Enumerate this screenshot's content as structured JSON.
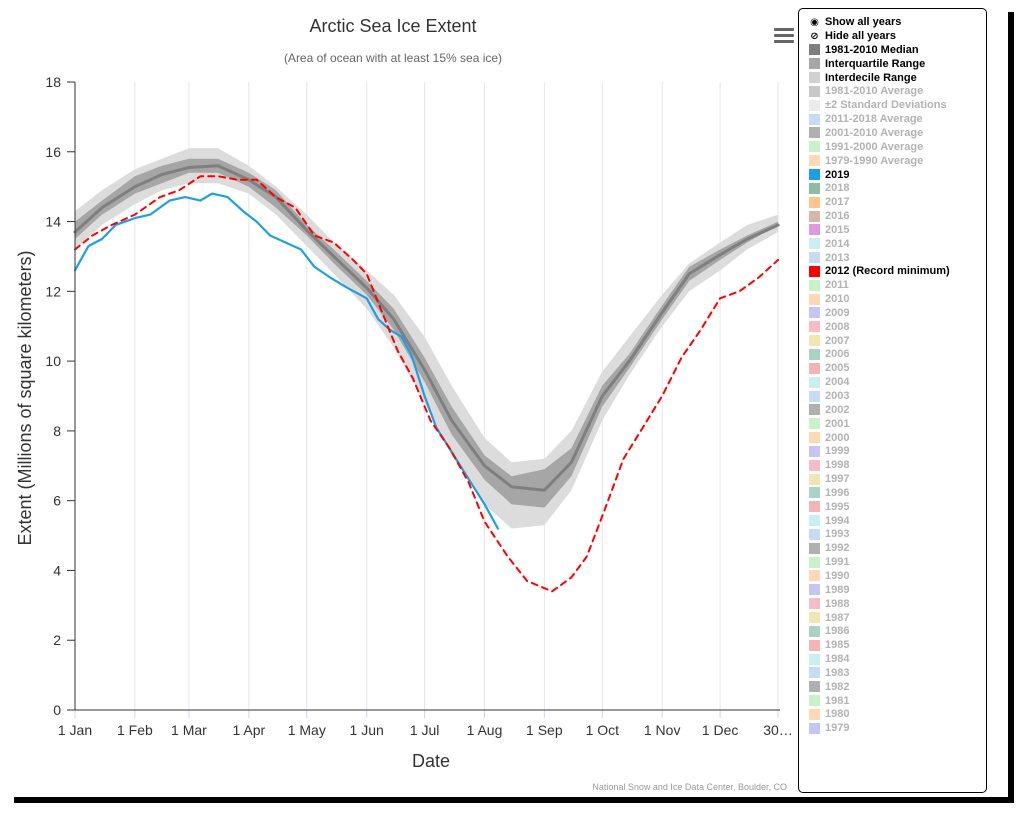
{
  "chart_data": {
    "type": "line",
    "title": "Arctic Sea Ice Extent",
    "subtitle": "(Area of ocean with at least 15% sea ice)",
    "xlabel": "Date",
    "ylabel": "Extent (Millions of square kilometers)",
    "ylim": [
      0,
      18
    ],
    "yticks": [
      0,
      2,
      4,
      6,
      8,
      10,
      12,
      14,
      16,
      18
    ],
    "xticks": [
      "1 Jan",
      "1 Feb",
      "1 Mar",
      "1 Apr",
      "1 May",
      "1 Jun",
      "1 Jul",
      "1 Aug",
      "1 Sep",
      "1 Oct",
      "1 Nov",
      "1 Dec",
      "30…"
    ],
    "grid": "vertical",
    "x_unit": "day of year",
    "bands": [
      {
        "name": "Interdecile Range",
        "color": "#dcdcdc",
        "x": [
          1,
          15,
          32,
          46,
          60,
          75,
          91,
          105,
          121,
          135,
          152,
          166,
          182,
          196,
          213,
          227,
          244,
          258,
          274,
          288,
          305,
          319,
          335,
          349,
          365
        ],
        "low": [
          13.2,
          13.9,
          14.5,
          14.9,
          15.1,
          15.1,
          14.8,
          14.2,
          13.3,
          12.5,
          11.5,
          10.4,
          8.8,
          7.3,
          5.9,
          5.2,
          5.3,
          6.3,
          8.3,
          9.6,
          11.0,
          12.0,
          12.6,
          13.2,
          13.7
        ],
        "high": [
          14.3,
          14.9,
          15.5,
          15.8,
          16.1,
          16.1,
          15.6,
          15.0,
          14.2,
          13.4,
          12.6,
          11.9,
          10.7,
          9.3,
          7.8,
          7.1,
          7.2,
          8.0,
          9.7,
          10.7,
          11.9,
          12.8,
          13.4,
          13.9,
          14.2
        ]
      },
      {
        "name": "Interquartile Range",
        "color": "#a6a6a6",
        "x": [
          1,
          15,
          32,
          46,
          60,
          75,
          91,
          105,
          121,
          135,
          152,
          166,
          182,
          196,
          213,
          227,
          244,
          258,
          274,
          288,
          305,
          319,
          335,
          349,
          365
        ],
        "low": [
          13.5,
          14.2,
          14.8,
          15.1,
          15.4,
          15.4,
          15.0,
          14.4,
          13.6,
          12.8,
          11.9,
          10.9,
          9.4,
          7.9,
          6.6,
          5.9,
          5.8,
          6.7,
          8.7,
          9.8,
          11.2,
          12.3,
          12.9,
          13.4,
          13.9
        ],
        "high": [
          14.0,
          14.6,
          15.3,
          15.6,
          15.8,
          15.8,
          15.4,
          14.9,
          13.9,
          13.2,
          12.3,
          11.5,
          10.1,
          8.7,
          7.3,
          6.7,
          6.9,
          7.5,
          9.3,
          10.2,
          11.6,
          12.7,
          13.2,
          13.6,
          14.0
        ]
      }
    ],
    "series": [
      {
        "name": "1981-2010 Median",
        "color": "#7f7f7f",
        "style": "solid",
        "x": [
          1,
          15,
          32,
          46,
          60,
          75,
          91,
          105,
          121,
          135,
          152,
          166,
          182,
          196,
          213,
          227,
          244,
          258,
          274,
          288,
          305,
          319,
          335,
          349,
          365
        ],
        "y": [
          13.7,
          14.4,
          15.0,
          15.35,
          15.55,
          15.6,
          15.2,
          14.7,
          13.75,
          13.0,
          12.1,
          11.2,
          9.75,
          8.3,
          7.0,
          6.4,
          6.3,
          7.1,
          9.0,
          10.0,
          11.4,
          12.5,
          13.05,
          13.5,
          13.9
        ]
      },
      {
        "name": "2019",
        "color": "#1e9fe5",
        "style": "solid",
        "x": [
          1,
          8,
          15,
          22,
          32,
          40,
          50,
          58,
          66,
          72,
          80,
          88,
          95,
          102,
          110,
          118,
          125,
          133,
          142,
          152,
          158,
          164,
          170,
          175,
          182,
          188,
          196,
          205,
          213,
          220
        ],
        "y": [
          12.6,
          13.3,
          13.5,
          13.9,
          14.1,
          14.2,
          14.6,
          14.7,
          14.6,
          14.8,
          14.7,
          14.3,
          14.0,
          13.6,
          13.4,
          13.2,
          12.7,
          12.4,
          12.1,
          11.8,
          11.2,
          10.9,
          10.7,
          10.2,
          9.0,
          8.1,
          7.4,
          6.6,
          5.9,
          5.2
        ]
      },
      {
        "name": "2012 (Record minimum)",
        "color": "#ff0000",
        "style": "dashed",
        "x": [
          1,
          10,
          20,
          32,
          45,
          55,
          66,
          75,
          85,
          95,
          105,
          115,
          125,
          135,
          145,
          152,
          160,
          168,
          176,
          185,
          195,
          205,
          213,
          225,
          235,
          248,
          258,
          266,
          275,
          285,
          295,
          305,
          315,
          325,
          335,
          345,
          355,
          365
        ],
        "y": [
          13.2,
          13.6,
          13.9,
          14.2,
          14.7,
          14.9,
          15.3,
          15.3,
          15.2,
          15.2,
          14.7,
          14.4,
          13.6,
          13.4,
          12.9,
          12.5,
          11.4,
          10.3,
          9.5,
          8.3,
          7.5,
          6.5,
          5.4,
          4.4,
          3.7,
          3.4,
          3.8,
          4.4,
          5.7,
          7.2,
          8.1,
          9.0,
          10.1,
          10.9,
          11.8,
          12.0,
          12.4,
          12.9
        ]
      }
    ],
    "legend_position": "right",
    "credit": "National Snow and Ice Data Center, Boulder, CO"
  },
  "legend": {
    "show_all": "Show all years",
    "hide_all": "Hide all years",
    "items": [
      {
        "label": "1981-2010 Median",
        "color": "#7f7f7f",
        "active": true
      },
      {
        "label": "Interquartile Range",
        "color": "#a6a6a6",
        "active": true
      },
      {
        "label": "Interdecile Range",
        "color": "#d0d0d0",
        "active": true
      },
      {
        "label": "1981-2010 Average",
        "color": "#c8c8c8",
        "active": false
      },
      {
        "label": "±2 Standard Deviations",
        "color": "#ececec",
        "active": false
      },
      {
        "label": "2011-2018 Average",
        "color": "#c6dcf4",
        "active": false
      },
      {
        "label": "2001-2010 Average",
        "color": "#b0b0b0",
        "active": false
      },
      {
        "label": "1991-2000 Average",
        "color": "#c9f2c9",
        "active": false
      },
      {
        "label": "1979-1990 Average",
        "color": "#fdd9b5",
        "active": false
      },
      {
        "label": "2019",
        "color": "#1e9fe5",
        "active": true
      },
      {
        "label": "2018",
        "color": "#8fbc9f",
        "active": false
      },
      {
        "label": "2017",
        "color": "#fdc58a",
        "active": false
      },
      {
        "label": "2016",
        "color": "#d6b8a8",
        "active": false
      },
      {
        "label": "2015",
        "color": "#dd99dd",
        "active": false
      },
      {
        "label": "2014",
        "color": "#c8f0f0",
        "active": false
      },
      {
        "label": "2013",
        "color": "#c6dcf4",
        "active": false
      },
      {
        "label": "2012 (Record minimum)",
        "color": "#ff0000",
        "active": true
      },
      {
        "label": "2011",
        "color": "#c9f2c9",
        "active": false
      },
      {
        "label": "2010",
        "color": "#fdd9b5",
        "active": false
      },
      {
        "label": "2009",
        "color": "#c6c6f4",
        "active": false
      },
      {
        "label": "2008",
        "color": "#f7bcc8",
        "active": false
      },
      {
        "label": "2007",
        "color": "#f0e6b0",
        "active": false
      },
      {
        "label": "2006",
        "color": "#a8d4c8",
        "active": false
      },
      {
        "label": "2005",
        "color": "#f4b4b4",
        "active": false
      },
      {
        "label": "2004",
        "color": "#c8f0f0",
        "active": false
      },
      {
        "label": "2003",
        "color": "#c6dcf4",
        "active": false
      },
      {
        "label": "2002",
        "color": "#b0b0b0",
        "active": false
      },
      {
        "label": "2001",
        "color": "#c9f2c9",
        "active": false
      },
      {
        "label": "2000",
        "color": "#fdd9b5",
        "active": false
      },
      {
        "label": "1999",
        "color": "#c6c6f4",
        "active": false
      },
      {
        "label": "1998",
        "color": "#f7bcc8",
        "active": false
      },
      {
        "label": "1997",
        "color": "#f0e6b0",
        "active": false
      },
      {
        "label": "1996",
        "color": "#a8d4c8",
        "active": false
      },
      {
        "label": "1995",
        "color": "#f4b4b4",
        "active": false
      },
      {
        "label": "1994",
        "color": "#c8f0f0",
        "active": false
      },
      {
        "label": "1993",
        "color": "#c6dcf4",
        "active": false
      },
      {
        "label": "1992",
        "color": "#b0b0b0",
        "active": false
      },
      {
        "label": "1991",
        "color": "#c9f2c9",
        "active": false
      },
      {
        "label": "1990",
        "color": "#fdd9b5",
        "active": false
      },
      {
        "label": "1989",
        "color": "#c6c6f4",
        "active": false
      },
      {
        "label": "1988",
        "color": "#f7bcc8",
        "active": false
      },
      {
        "label": "1987",
        "color": "#f0e6b0",
        "active": false
      },
      {
        "label": "1986",
        "color": "#a8d4c8",
        "active": false
      },
      {
        "label": "1985",
        "color": "#f4b4b4",
        "active": false
      },
      {
        "label": "1984",
        "color": "#c8f0f0",
        "active": false
      },
      {
        "label": "1983",
        "color": "#c6dcf4",
        "active": false
      },
      {
        "label": "1982",
        "color": "#b0b0b0",
        "active": false
      },
      {
        "label": "1981",
        "color": "#c9f2c9",
        "active": false
      },
      {
        "label": "1980",
        "color": "#fdd9b5",
        "active": false
      },
      {
        "label": "1979",
        "color": "#c6c6f4",
        "active": false
      }
    ]
  },
  "icons": {
    "menu": "hamburger-menu-icon",
    "show": "eye-icon",
    "hide": "eye-slash-icon"
  }
}
